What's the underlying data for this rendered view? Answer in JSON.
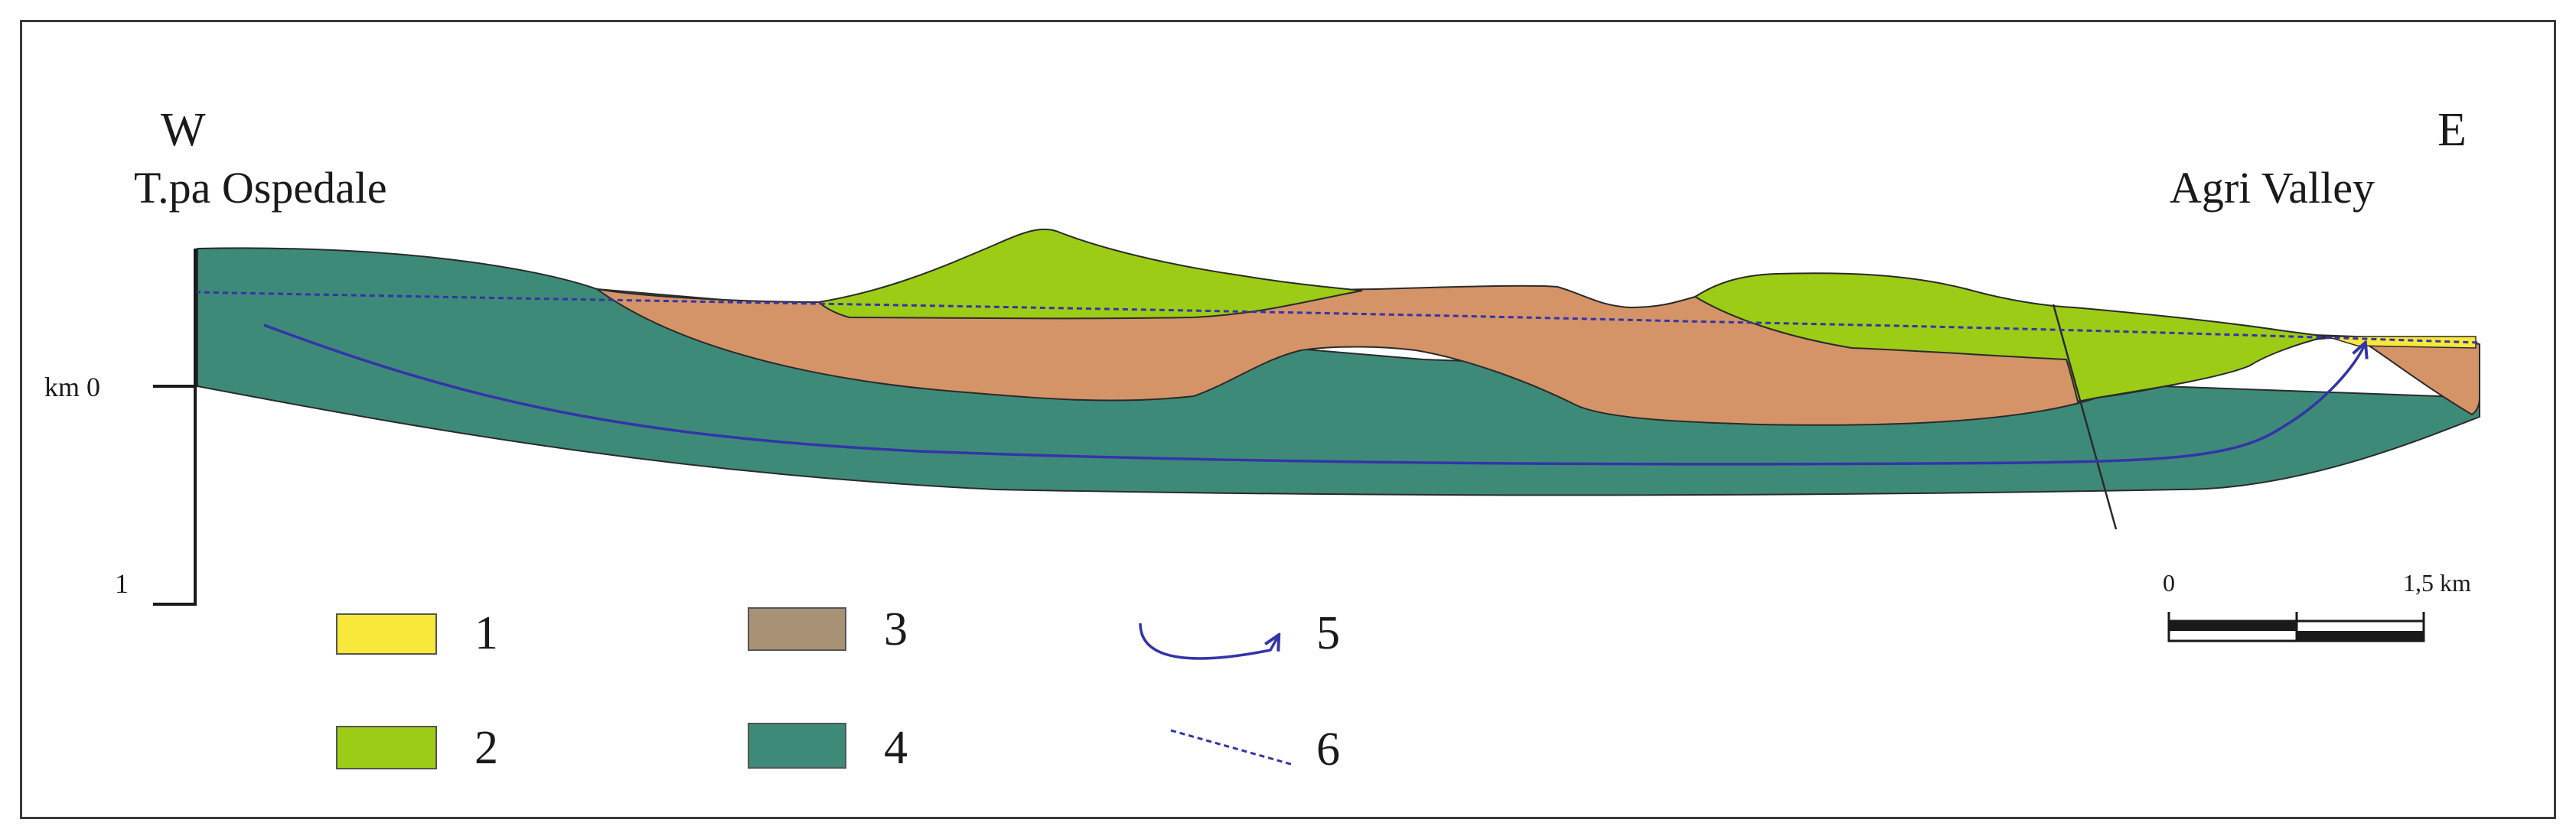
{
  "header": {
    "west": {
      "letter": "W",
      "place": "T.pa Ospedale"
    },
    "east": {
      "letter": "E",
      "place": "Agri Valley"
    }
  },
  "depth_axis": {
    "top_label": "km 0",
    "bottom_label": "1"
  },
  "scale_bar": {
    "start_label": "0",
    "end_label": "1,5 km"
  },
  "colors": {
    "unit_1": "#f7e83a",
    "unit_2": "#9ccc16",
    "unit_3": "#d49468",
    "unit_4": "#3e8a78",
    "legend_3_swatch": "#a89276",
    "legend_4_swatch": "#3e8a78",
    "flowpath": "#3434a8",
    "water_table": "#3434a8"
  },
  "legend": [
    {
      "id": "1",
      "label": "1",
      "symbol": "swatch",
      "color": "#f7e83a"
    },
    {
      "id": "2",
      "label": "2",
      "symbol": "swatch",
      "color": "#9ccc16"
    },
    {
      "id": "3",
      "label": "3",
      "symbol": "swatch",
      "color": "#a89276"
    },
    {
      "id": "4",
      "label": "4",
      "symbol": "swatch",
      "color": "#3e8a78"
    },
    {
      "id": "5",
      "label": "5",
      "symbol": "curved-arrow-line"
    },
    {
      "id": "6",
      "label": "6",
      "symbol": "dotted-line"
    }
  ]
}
